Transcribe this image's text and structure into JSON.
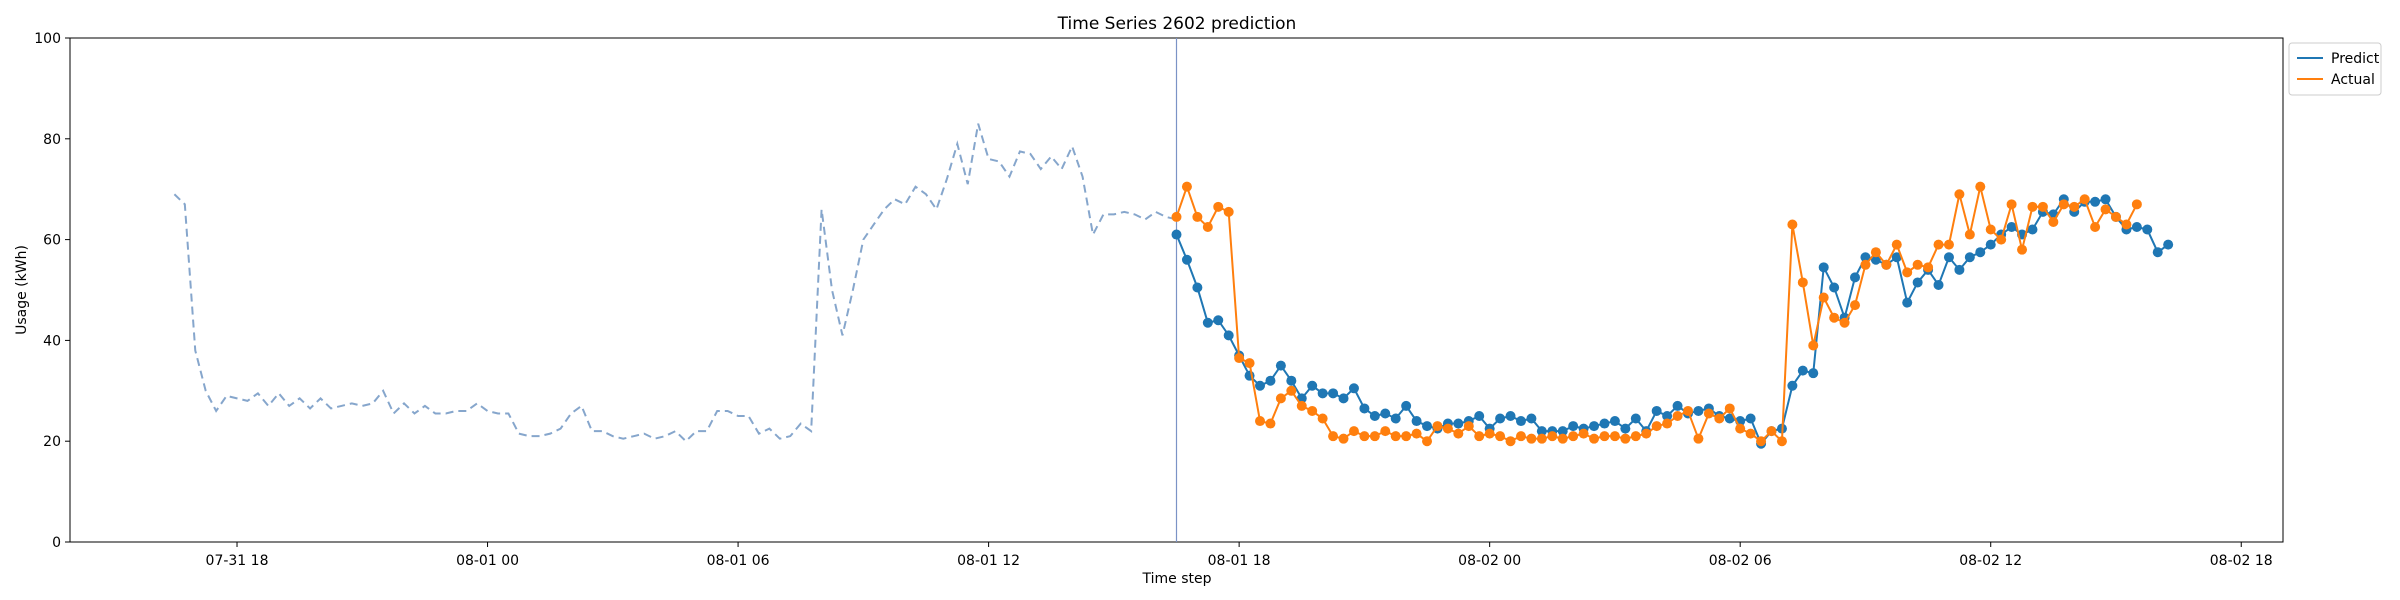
{
  "chart_data": {
    "type": "line",
    "title": "Time Series 2602 prediction",
    "xlabel": "Time step",
    "ylabel": "Usage (kWh)",
    "ylim": [
      0,
      100
    ],
    "xlim": [
      "2022-07-31T14:00",
      "2022-08-02T19:00"
    ],
    "y_ticks": [
      0,
      20,
      40,
      60,
      80,
      100
    ],
    "x_ticks": [
      {
        "t": "2022-07-31T18:00",
        "label": "07-31 18"
      },
      {
        "t": "2022-08-01T00:00",
        "label": "08-01 00"
      },
      {
        "t": "2022-08-01T06:00",
        "label": "08-01 06"
      },
      {
        "t": "2022-08-01T12:00",
        "label": "08-01 12"
      },
      {
        "t": "2022-08-01T18:00",
        "label": "08-01 18"
      },
      {
        "t": "2022-08-02T00:00",
        "label": "08-02 00"
      },
      {
        "t": "2022-08-02T06:00",
        "label": "08-02 06"
      },
      {
        "t": "2022-08-02T12:00",
        "label": "08-02 12"
      },
      {
        "t": "2022-08-02T18:00",
        "label": "08-02 18"
      }
    ],
    "step_minutes": 15,
    "history": {
      "start": "2022-07-31T16:30",
      "color": "#86a6cc",
      "style": "dashed",
      "values": [
        69,
        67,
        38,
        30,
        26,
        29,
        28.5,
        28,
        29.5,
        27,
        29.5,
        27,
        28.5,
        26.5,
        28.5,
        26.5,
        27,
        27.5,
        27,
        27.5,
        30,
        25.5,
        27.5,
        25.5,
        27,
        25.5,
        25.5,
        26,
        26,
        27.5,
        26,
        25.5,
        25.5,
        21.5,
        21,
        21,
        21.5,
        22.5,
        25.5,
        27,
        22,
        22,
        21,
        20.5,
        21,
        21.5,
        20.5,
        21,
        22,
        20,
        22,
        22,
        26,
        26,
        25,
        25,
        21.5,
        22.5,
        20.5,
        21,
        23.5,
        22,
        66,
        50,
        41,
        50,
        60,
        63,
        66,
        68,
        67,
        70.5,
        69,
        66,
        72,
        79,
        71,
        83,
        76,
        75.5,
        72.5,
        77.5,
        77,
        74,
        76.5,
        74,
        78.5,
        72.5,
        61,
        65,
        65,
        65.5,
        65,
        64,
        65.5,
        64.5,
        64
      ]
    },
    "forecast_marker": {
      "t": "2022-08-01T16:30",
      "color": "#7b93c6"
    },
    "series": [
      {
        "name": "Predict",
        "color": "#1f77b4",
        "start": "2022-08-01T16:30",
        "values": [
          61,
          56,
          50.5,
          43.5,
          44,
          41,
          37,
          33,
          31,
          32,
          35,
          32,
          28.5,
          31,
          29.5,
          29.5,
          28.5,
          30.5,
          26.5,
          25,
          25.5,
          24.5,
          27,
          24,
          23,
          22.5,
          23.5,
          23.5,
          24,
          25,
          22.5,
          24.5,
          25,
          24,
          24.5,
          22,
          22,
          22,
          23,
          22.5,
          23,
          23.5,
          24,
          22.5,
          24.5,
          22,
          26,
          25,
          27,
          25.5,
          26,
          26.5,
          25,
          24.5,
          24,
          24.5,
          19.5,
          22,
          22.5,
          31,
          34,
          33.5,
          54.5,
          50.5,
          44.5,
          52.5,
          56.5,
          56,
          55,
          56.5,
          47.5,
          51.5,
          54,
          51,
          56.5,
          54,
          56.5,
          57.5,
          59,
          61,
          62.5,
          61,
          62,
          65.5,
          65,
          68,
          65.5,
          67.5,
          67.5,
          68,
          64.5,
          62,
          62.5,
          62,
          57.5,
          59
        ]
      },
      {
        "name": "Actual",
        "color": "#ff7f0e",
        "start": "2022-08-01T16:30",
        "values": [
          64.5,
          70.5,
          64.5,
          62.5,
          66.5,
          65.5,
          36.5,
          35.5,
          24,
          23.5,
          28.5,
          30,
          27,
          26,
          24.5,
          21,
          20.5,
          22,
          21,
          21,
          22,
          21,
          21,
          21.5,
          20,
          23,
          22.5,
          21.5,
          23,
          21,
          21.5,
          21,
          20,
          21,
          20.5,
          20.5,
          21,
          20.5,
          21,
          21.5,
          20.5,
          21,
          21,
          20.5,
          21,
          21.5,
          23,
          23.5,
          25,
          26,
          20.5,
          25.5,
          24.5,
          26.5,
          22.5,
          21.5,
          20,
          22,
          20,
          63,
          51.5,
          39,
          48.5,
          44.5,
          43.5,
          47,
          55,
          57.5,
          55,
          59,
          53.5,
          55,
          54.5,
          59,
          59,
          69,
          61,
          70.5,
          62,
          60,
          67,
          58,
          66.5,
          66.5,
          63.5,
          67,
          66.5,
          68,
          62.5,
          66,
          64.5,
          63,
          67
        ]
      }
    ],
    "legend": {
      "position": "top-right outside",
      "entries": [
        "Predict",
        "Actual"
      ]
    },
    "grid": false
  }
}
